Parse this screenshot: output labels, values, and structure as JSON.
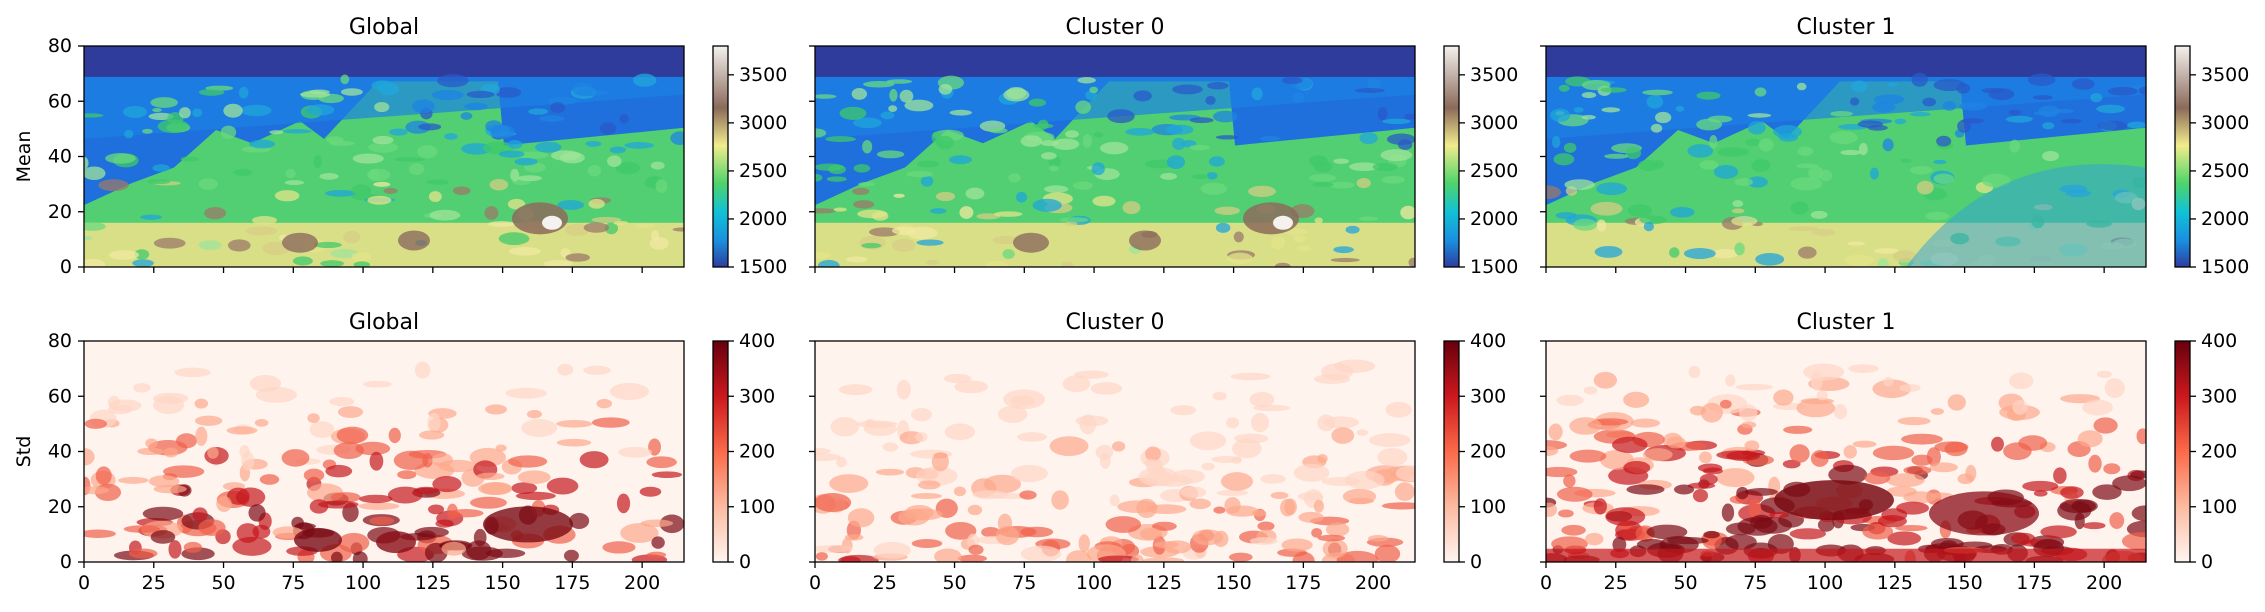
{
  "chart_data": [
    {
      "type": "heatmap",
      "title": "Global",
      "ylabel": "Mean",
      "xlabel": "",
      "xlim": [
        0,
        215
      ],
      "ylim": [
        80,
        0
      ],
      "x_ticks": [],
      "y_ticks": [
        0,
        20,
        40,
        60,
        80
      ],
      "colorbar": {
        "cmap": "terrain",
        "range": [
          1500,
          3800
        ],
        "ticks": [
          1500,
          2000,
          2500,
          3000,
          3500
        ]
      },
      "values_description_note": null
    },
    {
      "type": "heatmap",
      "title": "Cluster 0",
      "ylabel": "",
      "xlabel": "",
      "xlim": [
        0,
        215
      ],
      "ylim": [
        80,
        0
      ],
      "x_ticks": [],
      "y_ticks": [],
      "colorbar": {
        "cmap": "terrain",
        "range": [
          1500,
          3800
        ],
        "ticks": [
          1500,
          2000,
          2500,
          3000,
          3500
        ]
      }
    },
    {
      "type": "heatmap",
      "title": "Cluster 1",
      "ylabel": "",
      "xlabel": "",
      "xlim": [
        0,
        215
      ],
      "ylim": [
        80,
        0
      ],
      "x_ticks": [],
      "y_ticks": [],
      "colorbar": {
        "cmap": "terrain",
        "range": [
          1500,
          3800
        ],
        "ticks": [
          1500,
          2000,
          2500,
          3000,
          3500
        ]
      }
    },
    {
      "type": "heatmap",
      "title": "Global",
      "ylabel": "Std",
      "xlabel": "",
      "xlim": [
        0,
        215
      ],
      "ylim": [
        80,
        0
      ],
      "x_ticks": [
        0,
        25,
        50,
        75,
        100,
        125,
        150,
        175,
        200
      ],
      "y_ticks": [
        0,
        20,
        40,
        60,
        80
      ],
      "colorbar": {
        "cmap": "Reds",
        "range": [
          0,
          400
        ],
        "ticks": [
          0,
          100,
          200,
          300,
          400
        ]
      }
    },
    {
      "type": "heatmap",
      "title": "Cluster 0",
      "ylabel": "",
      "xlabel": "",
      "xlim": [
        0,
        215
      ],
      "ylim": [
        80,
        0
      ],
      "x_ticks": [
        0,
        25,
        50,
        75,
        100,
        125,
        150,
        175,
        200
      ],
      "y_ticks": [],
      "colorbar": {
        "cmap": "Reds",
        "range": [
          0,
          400
        ],
        "ticks": [
          0,
          100,
          200,
          300,
          400
        ]
      }
    },
    {
      "type": "heatmap",
      "title": "Cluster 1",
      "ylabel": "",
      "xlabel": "",
      "xlim": [
        0,
        215
      ],
      "ylim": [
        80,
        0
      ],
      "x_ticks": [
        0,
        25,
        50,
        75,
        100,
        125,
        150,
        175,
        200
      ],
      "y_ticks": [],
      "colorbar": {
        "cmap": "Reds",
        "range": [
          0,
          400
        ],
        "ticks": [
          0,
          100,
          200,
          300,
          400
        ]
      }
    }
  ],
  "colors": {
    "terrain_top": "#f4f1ee",
    "terrain_mid_high": "#8b6a5a",
    "terrain_yellow": "#f2ec8c",
    "terrain_green": "#4fd46a",
    "terrain_cyan": "#1a8fe0",
    "terrain_blue": "#2e3d9e",
    "reds_low": "#fff5f0",
    "reds_high": "#67000d"
  }
}
